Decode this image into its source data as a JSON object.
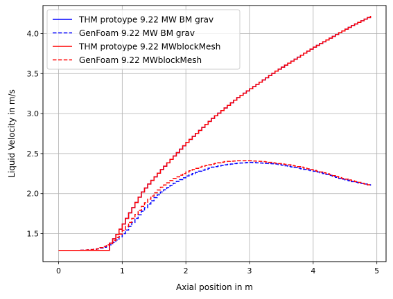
{
  "chart_data": {
    "type": "line",
    "title": "",
    "xlabel": "Axial position in m",
    "ylabel": "Liquid Velocity in m/s",
    "xlim": [
      -0.245,
      5.145
    ],
    "ylim": [
      1.15,
      4.35
    ],
    "xticks": [
      0,
      1,
      2,
      3,
      4,
      5
    ],
    "yticks": [
      1.5,
      2.0,
      2.5,
      3.0,
      3.5,
      4.0
    ],
    "xtick_labels": [
      "0",
      "1",
      "2",
      "3",
      "4",
      "5"
    ],
    "ytick_labels": [
      "1.5",
      "2.0",
      "2.5",
      "3.0",
      "3.5",
      "4.0"
    ],
    "grid": true,
    "legend_position": "top-left",
    "step_width": 0.05,
    "series": [
      {
        "name": "THM protoype 9.22 MW BM grav",
        "color": "#0000ff",
        "dash": "solid",
        "points": [
          [
            0,
            1.29
          ],
          [
            0.3,
            1.29
          ],
          [
            0.6,
            1.29
          ],
          [
            0.8,
            1.29
          ],
          [
            0.8,
            1.38
          ],
          [
            0.9,
            1.49
          ],
          [
            1.0,
            1.62
          ],
          [
            1.1,
            1.76
          ],
          [
            1.2,
            1.89
          ],
          [
            1.3,
            2.02
          ],
          [
            1.4,
            2.12
          ],
          [
            1.5,
            2.21
          ],
          [
            1.6,
            2.3
          ],
          [
            1.8,
            2.47
          ],
          [
            2.0,
            2.64
          ],
          [
            2.2,
            2.79
          ],
          [
            2.4,
            2.94
          ],
          [
            2.6,
            3.07
          ],
          [
            2.8,
            3.2
          ],
          [
            3.0,
            3.31
          ],
          [
            3.2,
            3.42
          ],
          [
            3.4,
            3.53
          ],
          [
            3.6,
            3.63
          ],
          [
            3.8,
            3.73
          ],
          [
            4.0,
            3.83
          ],
          [
            4.2,
            3.92
          ],
          [
            4.4,
            4.01
          ],
          [
            4.6,
            4.1
          ],
          [
            4.8,
            4.18
          ],
          [
            4.9,
            4.22
          ]
        ]
      },
      {
        "name": "GenFoam 9.22 MW BM grav",
        "color": "#0000ff",
        "dash": "dashed",
        "points": [
          [
            0,
            1.29
          ],
          [
            0.3,
            1.29
          ],
          [
            0.5,
            1.3
          ],
          [
            0.6,
            1.31
          ],
          [
            0.7,
            1.33
          ],
          [
            0.8,
            1.36
          ],
          [
            0.9,
            1.42
          ],
          [
            1.0,
            1.5
          ],
          [
            1.1,
            1.59
          ],
          [
            1.2,
            1.69
          ],
          [
            1.3,
            1.78
          ],
          [
            1.4,
            1.87
          ],
          [
            1.5,
            1.95
          ],
          [
            1.6,
            2.02
          ],
          [
            1.8,
            2.13
          ],
          [
            2.0,
            2.22
          ],
          [
            2.2,
            2.28
          ],
          [
            2.4,
            2.33
          ],
          [
            2.6,
            2.36
          ],
          [
            2.8,
            2.38
          ],
          [
            3.0,
            2.39
          ],
          [
            3.2,
            2.38
          ],
          [
            3.4,
            2.37
          ],
          [
            3.6,
            2.34
          ],
          [
            3.8,
            2.31
          ],
          [
            4.0,
            2.28
          ],
          [
            4.2,
            2.24
          ],
          [
            4.4,
            2.19
          ],
          [
            4.6,
            2.15
          ],
          [
            4.8,
            2.12
          ],
          [
            4.9,
            2.1
          ]
        ]
      },
      {
        "name": "THM protoype 9.22 MWblockMesh",
        "color": "#ff0000",
        "dash": "solid",
        "points": [
          [
            0,
            1.29
          ],
          [
            0.3,
            1.29
          ],
          [
            0.6,
            1.29
          ],
          [
            0.8,
            1.29
          ],
          [
            0.8,
            1.38
          ],
          [
            0.9,
            1.49
          ],
          [
            1.0,
            1.62
          ],
          [
            1.1,
            1.76
          ],
          [
            1.2,
            1.89
          ],
          [
            1.3,
            2.02
          ],
          [
            1.4,
            2.12
          ],
          [
            1.5,
            2.21
          ],
          [
            1.6,
            2.3
          ],
          [
            1.8,
            2.47
          ],
          [
            2.0,
            2.64
          ],
          [
            2.2,
            2.79
          ],
          [
            2.4,
            2.94
          ],
          [
            2.6,
            3.07
          ],
          [
            2.8,
            3.2
          ],
          [
            3.0,
            3.31
          ],
          [
            3.2,
            3.42
          ],
          [
            3.4,
            3.53
          ],
          [
            3.6,
            3.63
          ],
          [
            3.8,
            3.73
          ],
          [
            4.0,
            3.83
          ],
          [
            4.2,
            3.92
          ],
          [
            4.4,
            4.01
          ],
          [
            4.6,
            4.1
          ],
          [
            4.8,
            4.18
          ],
          [
            4.9,
            4.22
          ]
        ]
      },
      {
        "name": "GenFoam 9.22 MWblockMesh",
        "color": "#ff0000",
        "dash": "dashed",
        "points": [
          [
            0,
            1.29
          ],
          [
            0.3,
            1.29
          ],
          [
            0.5,
            1.3
          ],
          [
            0.6,
            1.31
          ],
          [
            0.7,
            1.34
          ],
          [
            0.8,
            1.38
          ],
          [
            0.9,
            1.45
          ],
          [
            1.0,
            1.54
          ],
          [
            1.1,
            1.64
          ],
          [
            1.2,
            1.74
          ],
          [
            1.3,
            1.84
          ],
          [
            1.4,
            1.93
          ],
          [
            1.5,
            2.01
          ],
          [
            1.6,
            2.08
          ],
          [
            1.8,
            2.19
          ],
          [
            2.0,
            2.27
          ],
          [
            2.2,
            2.33
          ],
          [
            2.4,
            2.37
          ],
          [
            2.6,
            2.4
          ],
          [
            2.8,
            2.41
          ],
          [
            3.0,
            2.41
          ],
          [
            3.2,
            2.4
          ],
          [
            3.4,
            2.38
          ],
          [
            3.6,
            2.36
          ],
          [
            3.8,
            2.33
          ],
          [
            4.0,
            2.29
          ],
          [
            4.2,
            2.25
          ],
          [
            4.4,
            2.2
          ],
          [
            4.6,
            2.16
          ],
          [
            4.8,
            2.12
          ],
          [
            4.9,
            2.1
          ]
        ]
      }
    ]
  }
}
